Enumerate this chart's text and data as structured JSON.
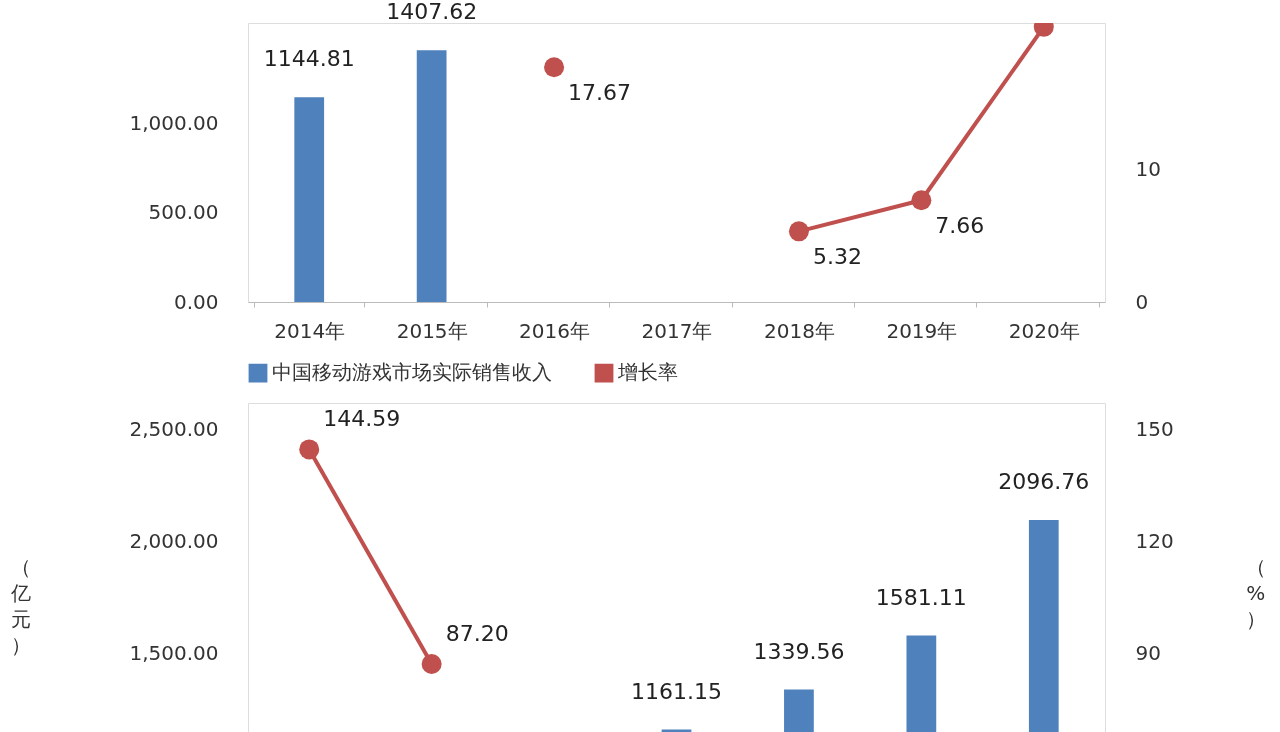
{
  "chart_data": [
    {
      "type": "bar",
      "categories": [
        "2014年",
        "2015年",
        "2016年",
        "2017年",
        "2018年",
        "2019年",
        "2020年"
      ],
      "series": [
        {
          "color": "#4f81bd",
          "values": [
            1144.81,
            1407.62,
            null,
            null,
            null,
            null,
            null
          ],
          "value_labels": [
            "1144.81",
            "1407.62",
            null,
            null,
            null,
            null,
            null
          ]
        },
        {
          "type": "line",
          "axis": "y2",
          "color": "#c0504d",
          "values": [
            null,
            null,
            17.67,
            null,
            5.32,
            7.66,
            20.71
          ],
          "value_labels": [
            null,
            null,
            "17.67",
            null,
            "5.32",
            "7.66",
            null
          ]
        }
      ],
      "marker": "circle",
      "ylim": [
        0,
        1560
      ],
      "yticks": [
        {
          "value": 0,
          "label": "0.00"
        },
        {
          "value": 500,
          "label": "500.00"
        },
        {
          "value": 1000,
          "label": "1,000.00"
        }
      ],
      "y2lim": [
        0,
        21
      ],
      "y2ticks": [
        0,
        10
      ]
    },
    {
      "type": "bar",
      "categories": [
        null,
        null,
        null,
        null,
        null,
        null,
        null
      ],
      "series": [
        {
          "name": "中国移动游戏市场实际销售收入",
          "color": "#4f81bd",
          "values": [
            null,
            null,
            null,
            1161.15,
            1339.56,
            1581.11,
            2096.76
          ],
          "value_labels": [
            null,
            null,
            null,
            "1161.15",
            "1339.56",
            "1581.11",
            "2096.76"
          ]
        },
        {
          "type": "line",
          "axis": "y2",
          "name": "增长率",
          "color": "#c0504d",
          "values": [
            144.59,
            87.2,
            null,
            null,
            null,
            null,
            null
          ],
          "value_labels": [
            "144.59",
            "87.20",
            null,
            null,
            null,
            null,
            null
          ]
        }
      ],
      "marker": "circle",
      "legend": "top",
      "tick_labels": "y",
      "ylabel": "（亿元）",
      "y2label": "（%）",
      "ylim": [
        1150,
        2620
      ],
      "yticks": [
        {
          "value": 1500,
          "label": "1,500.00"
        },
        {
          "value": 2000,
          "label": "2,000.00"
        },
        {
          "value": 2500,
          "label": "2,500.00"
        }
      ],
      "y2lim": [
        69,
        157
      ],
      "y2ticks": [
        90,
        120,
        150
      ]
    }
  ]
}
